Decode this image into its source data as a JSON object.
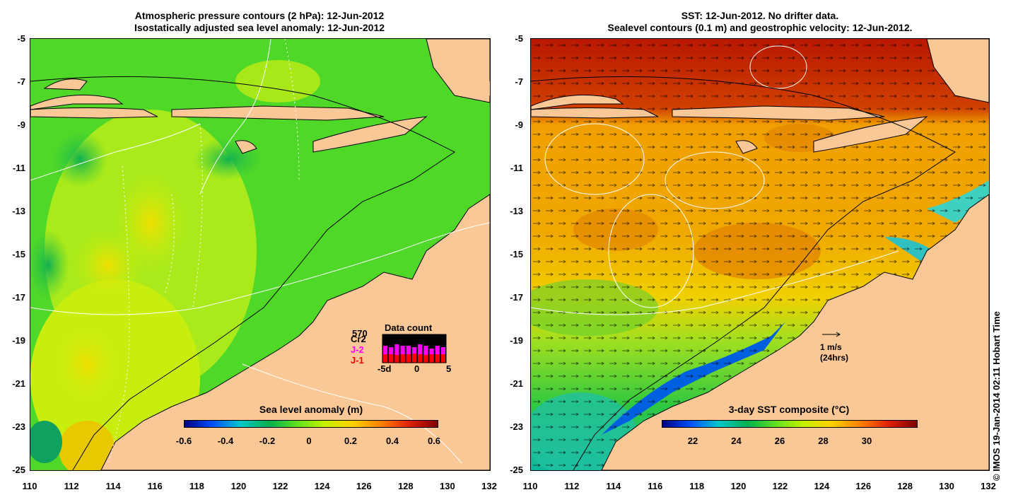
{
  "left_panel": {
    "title_line1": "Atmospheric pressure contours (2 hPa): 12-Jun-2012",
    "title_line2": "Isostatically adjusted sea level anomaly: 12-Jun-2012",
    "colorbar_title": "Sea level anomaly (m)",
    "colorbar_ticks": [
      "-0.6",
      "-0.4",
      "-0.2",
      "0",
      "0.2",
      "0.4",
      "0.6"
    ],
    "colorbar_colors": [
      "#00007f",
      "#0050ff",
      "#00c8c8",
      "#00b050",
      "#60e020",
      "#c8f000",
      "#ffd000",
      "#ff8000",
      "#e02000",
      "#800000"
    ],
    "inset": {
      "count": "570",
      "sat_cr2": "Cr2",
      "sat_j2": "J-2",
      "sat_j1": "J-1",
      "title": "Data count",
      "axis_ticks": [
        "-5d",
        "0",
        "5"
      ],
      "bars_total": [
        1,
        0.95,
        1,
        0.9,
        1,
        1,
        0.95,
        0.9,
        1,
        0.9,
        0.95
      ],
      "bars_j2": [
        0.6,
        0.55,
        0.65,
        0.6,
        0.6,
        0.55,
        0.65,
        0.6,
        0.5,
        0.6,
        0.55
      ],
      "bars_j1": [
        0.3,
        0.3,
        0.28,
        0.3,
        0.3,
        0.32,
        0.3,
        0.28,
        0.3,
        0.3,
        0.3
      ],
      "colors": {
        "cr2": "#000000",
        "j2": "#ff00ff",
        "j1": "#ff0000"
      }
    }
  },
  "right_panel": {
    "title_line1": "SST: 12-Jun-2012. No drifter data.",
    "title_line2": "Sealevel contours (0.1 m) and geostrophic velocity: 12-Jun-2012.",
    "colorbar_title": "3-day SST composite (°C)",
    "colorbar_ticks": [
      "22",
      "24",
      "26",
      "28",
      "30"
    ],
    "colorbar_colors": [
      "#00007f",
      "#0050ff",
      "#00c8c8",
      "#00b050",
      "#60e020",
      "#c8f000",
      "#ffd000",
      "#ff8000",
      "#e02000",
      "#800000"
    ],
    "velocity_scale_1": "1 m/s",
    "velocity_scale_2": "(24hrs)"
  },
  "axes": {
    "lat_ticks": [
      "-5",
      "-7",
      "-9",
      "-11",
      "-13",
      "-15",
      "-17",
      "-19",
      "-21",
      "-23",
      "-25"
    ],
    "lon_ticks": [
      "110",
      "112",
      "114",
      "116",
      "118",
      "120",
      "122",
      "124",
      "126",
      "128",
      "130",
      "132"
    ],
    "lat_range": [
      -25,
      -5
    ],
    "lon_range": [
      110,
      132
    ]
  },
  "colors": {
    "land": "#fac896",
    "ocean_green": "#40d020",
    "ocean_yellow": "#e0f000"
  },
  "copyright": "© IMOS 19-Jan-2014 02:11 Hobart Time"
}
